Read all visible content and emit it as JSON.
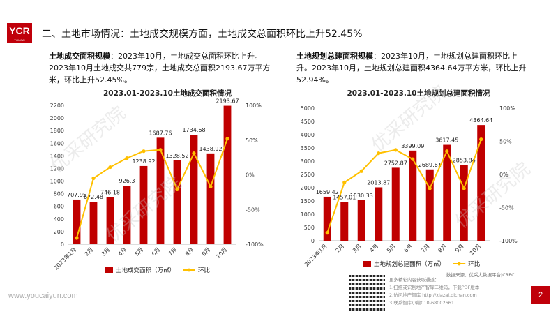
{
  "header": {
    "logo_text": "YCR",
    "logo_sub": "YOUCAI RESEARCH",
    "title": "二、土地市场情况：土地成交规模方面，土地成交总面积环比上升52.45%"
  },
  "left": {
    "para_bold": "土地成交面积规模",
    "para_rest": "：2023年10月，土地成交总面积环比上升。2023年10月土地成交共779宗，土地成交总面积2193.67万平方米，环比上升52.45%。"
  },
  "right": {
    "para_bold": "土地规划总建面积规模",
    "para_rest": "：2023年10月，土地规划总建面积环比上升。2023年10月，土地规划总建面积4364.64万平方米，环比上升52.94%。"
  },
  "watermark": "优采研究院",
  "footer": {
    "url": "www.youcaiyun.com",
    "page": "2",
    "source": "数据来源：优采大数据平台|CRPC",
    "promo_lines": [
      "更多精彩内容获取通道：",
      "1.扫描或识别地产智库二维码，下载PDF版本",
      "2.访问地产智库 http://xiazai.dichan.com",
      "3.联系智库小编010-68002661"
    ]
  },
  "colors": {
    "bar": "#c00000",
    "line": "#ffc000",
    "accent": "#c0000a"
  },
  "chart_data": [
    {
      "type": "bar",
      "title": "2023.01-2023.10土地成交面积情况",
      "categories": [
        "2023年1月",
        "2月",
        "3月",
        "4月",
        "5月",
        "6月",
        "7月",
        "8月",
        "9月",
        "10月"
      ],
      "series": [
        {
          "name": "土地成交面积（万㎡）",
          "axis": "left",
          "values": [
            707.95,
            672.48,
            746.18,
            926.3,
            1238.92,
            1687.76,
            1328.52,
            1734.68,
            1438.92,
            2193.67
          ]
        },
        {
          "name": "环比",
          "type": "line",
          "axis": "right",
          "values": [
            -91,
            -5,
            11,
            24,
            34,
            36,
            -21,
            31,
            -17,
            52
          ]
        }
      ],
      "ylim": [
        0,
        2200
      ],
      "yticks": [
        0,
        200,
        400,
        600,
        800,
        1000,
        1200,
        1400,
        1600,
        1800,
        2000,
        2200
      ],
      "y2lim": [
        -100,
        100
      ],
      "y2ticks": [
        "-100%",
        "-50%",
        "0%",
        "50%",
        "100%"
      ],
      "legend": "bottom"
    },
    {
      "type": "bar",
      "title": "2023.01-2023.10土地规划总建面积情况",
      "categories": [
        "2023年1月",
        "2月",
        "3月",
        "4月",
        "5月",
        "6月",
        "7月",
        "8月",
        "9月",
        "10月"
      ],
      "series": [
        {
          "name": "土地规划总建面积（万㎡）",
          "axis": "left",
          "values": [
            1659.42,
            1457.01,
            1530.33,
            2013.87,
            2752.87,
            3399.09,
            2689.61,
            3617.45,
            2853.84,
            4364.64
          ]
        },
        {
          "name": "环比",
          "type": "line",
          "axis": "right",
          "values": [
            -88,
            -12,
            5,
            32,
            37,
            23,
            -21,
            35,
            -21,
            53
          ]
        }
      ],
      "ylim": [
        0,
        5000
      ],
      "yticks": [
        0,
        500,
        1000,
        1500,
        2000,
        2500,
        3000,
        3500,
        4000,
        4500,
        5000
      ],
      "y2lim": [
        -100,
        100
      ],
      "y2ticks": [
        "-100%",
        "-50%",
        "0%",
        "50%",
        "100%"
      ],
      "legend": "bottom"
    }
  ]
}
